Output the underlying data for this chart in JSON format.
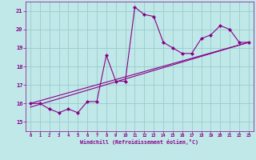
{
  "xlabel": "Windchill (Refroidissement éolien,°C)",
  "bg_color": "#c0e8e8",
  "line_color": "#880088",
  "grid_color": "#99cccc",
  "xlim": [
    -0.5,
    23.5
  ],
  "ylim": [
    14.5,
    21.5
  ],
  "yticks": [
    15,
    16,
    17,
    18,
    19,
    20,
    21
  ],
  "xticks": [
    0,
    1,
    2,
    3,
    4,
    5,
    6,
    7,
    8,
    9,
    10,
    11,
    12,
    13,
    14,
    15,
    16,
    17,
    18,
    19,
    20,
    21,
    22,
    23
  ],
  "data_x": [
    0,
    1,
    2,
    3,
    4,
    5,
    6,
    7,
    8,
    9,
    10,
    11,
    12,
    13,
    14,
    15,
    16,
    17,
    18,
    19,
    20,
    21,
    22,
    23
  ],
  "data_y": [
    16.0,
    16.0,
    15.7,
    15.5,
    15.7,
    15.5,
    16.1,
    16.1,
    18.6,
    17.2,
    17.2,
    21.2,
    20.8,
    20.7,
    19.3,
    19.0,
    18.7,
    18.7,
    19.5,
    19.7,
    20.2,
    20.0,
    19.3,
    19.3
  ],
  "trend_x": [
    0,
    23
  ],
  "trend_y": [
    15.8,
    19.3
  ],
  "trend2_x": [
    0,
    23
  ],
  "trend2_y": [
    16.0,
    19.3
  ],
  "marker": "D",
  "markersize": 2.5,
  "linewidth": 0.8
}
